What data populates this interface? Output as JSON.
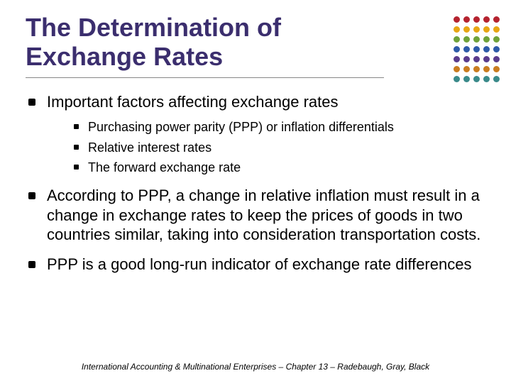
{
  "title_color": "#3b2e6e",
  "title_line1": "The Determination of",
  "title_line2": "Exchange Rates",
  "bullets": {
    "b1": "Important factors affecting exchange rates",
    "b1_sub1": "Purchasing power parity (PPP) or inflation differentials",
    "b1_sub2": "Relative interest rates",
    "b1_sub3": "The forward exchange rate",
    "b2": "According to PPP, a change in relative inflation must result in a change in exchange rates to keep the prices of goods in two countries similar, taking into consideration transportation costs.",
    "b3": "PPP is a good long-run indicator of exchange rate differences"
  },
  "footer": "International Accounting & Multinational Enterprises – Chapter 13 – Radebaugh, Gray, Black",
  "dot_colors": [
    "#b5232f",
    "#b5232f",
    "#b5232f",
    "#b5232f",
    "#b5232f",
    "#e7a614",
    "#e7a614",
    "#e7a614",
    "#e7a614",
    "#e7a614",
    "#6fa23a",
    "#6fa23a",
    "#6fa23a",
    "#6fa23a",
    "#6fa23a",
    "#2e5aa8",
    "#2e5aa8",
    "#2e5aa8",
    "#2e5aa8",
    "#2e5aa8",
    "#5a3b8c",
    "#5a3b8c",
    "#5a3b8c",
    "#5a3b8c",
    "#5a3b8c",
    "#c97c1f",
    "#c97c1f",
    "#c97c1f",
    "#c97c1f",
    "#c97c1f",
    "#3a8a8a",
    "#3a8a8a",
    "#3a8a8a",
    "#3a8a8a",
    "#3a8a8a"
  ]
}
